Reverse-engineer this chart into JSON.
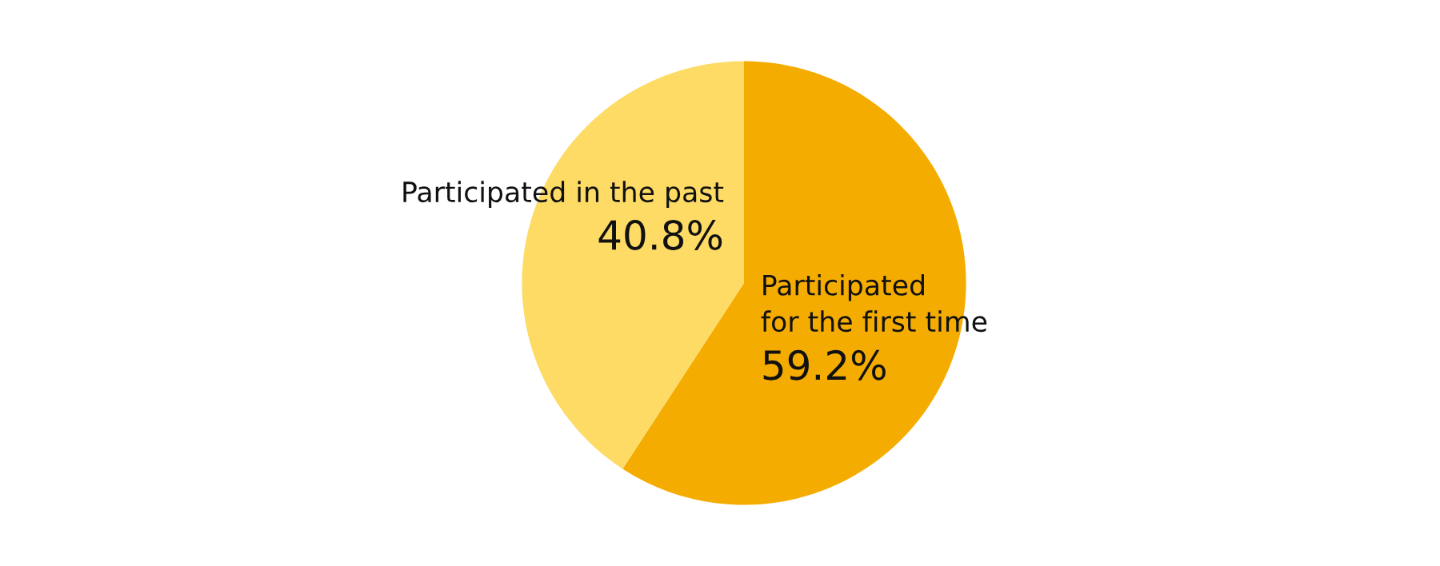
{
  "chart_data": {
    "type": "pie",
    "categories": [
      "Participated\nfor the first time",
      "Participated in the past"
    ],
    "values": [
      59.2,
      40.8
    ],
    "colors": [
      "#f5ac00",
      "#fddb65"
    ],
    "value_labels": [
      "59.2%",
      "40.8%"
    ],
    "legend": false
  }
}
